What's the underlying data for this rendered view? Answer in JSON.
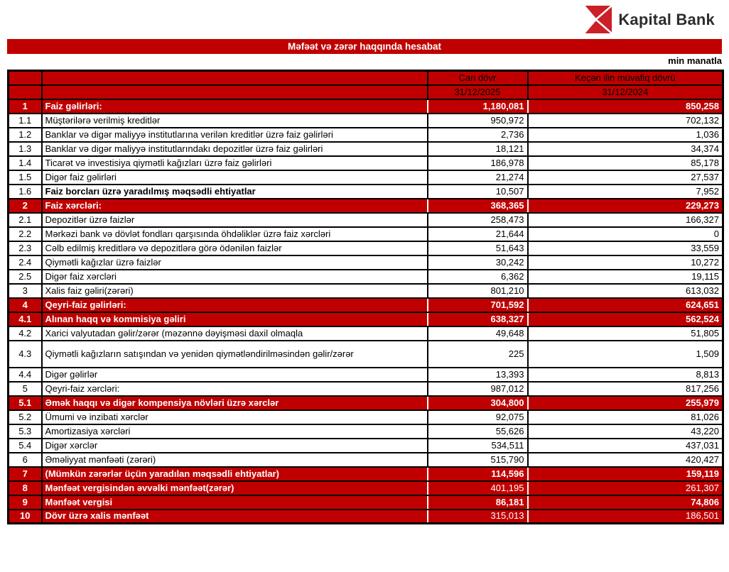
{
  "brand": {
    "name": "Kapital Bank",
    "logo_color": "#cb2026"
  },
  "report": {
    "title": "Məfəət və zərər haqqında hesabat",
    "unit_note": "min manatla",
    "accent_color": "#c00000"
  },
  "table": {
    "columns": {
      "current_label": "Cari dövr",
      "current_date": "31/12/2025",
      "previous_label": "Keçən ilin müvafiq dövrü",
      "previous_date": "31/12/2024"
    },
    "rows": [
      {
        "no": "1",
        "label": "Faiz gəlirləri:",
        "current": "1,180,081",
        "previous": "850,258",
        "style": "red"
      },
      {
        "no": "1.1",
        "label": "Müştərilərə verilmiş kreditlər",
        "current": "950,972",
        "previous": "702,132",
        "style": "white"
      },
      {
        "no": "1.2",
        "label": "Banklar və digər maliyyə institutlarına verilən kreditlər üzrə faiz gəlirləri",
        "current": "2,736",
        "previous": "1,036",
        "style": "white"
      },
      {
        "no": "1.3",
        "label": "Banklar və digər maliyyə institutlarındakı depozitlər üzrə faiz gəlirləri",
        "current": "18,121",
        "previous": "34,374",
        "style": "white"
      },
      {
        "no": "1.4",
        "label": "Ticarət və investisiya qiymətli kağızları üzrə faiz gəlirləri",
        "current": "186,978",
        "previous": "85,178",
        "style": "white"
      },
      {
        "no": "1.5",
        "label": "Digər faiz gəlirləri",
        "current": "21,274",
        "previous": "27,537",
        "style": "white"
      },
      {
        "no": "1.6",
        "label": "Faiz borcları üzrə yaradılmış məqsədli ehtiyatlar",
        "current": "10,507",
        "previous": "7,952",
        "style": "white-bold"
      },
      {
        "no": "2",
        "label": "Faiz xərcləri:",
        "current": "368,365",
        "previous": "229,273",
        "style": "red"
      },
      {
        "no": "2.1",
        "label": "Depozitlər üzrə faizlər",
        "current": "258,473",
        "previous": "166,327",
        "style": "white"
      },
      {
        "no": "2.2",
        "label": "Mərkəzi bank və dövlət fondları qarşısında öhdəliklər üzrə faiz xərcləri",
        "current": "21,644",
        "previous": "0",
        "style": "white"
      },
      {
        "no": "2.3",
        "label": "Cəlb edilmiş kreditlərə və depozitlərə görə ödənilən faizlər",
        "current": "51,643",
        "previous": "33,559",
        "style": "white"
      },
      {
        "no": "2.4",
        "label": "Qiymətli kağızlar üzrə faizlər",
        "current": "30,242",
        "previous": "10,272",
        "style": "white"
      },
      {
        "no": "2.5",
        "label": "Digər faiz xərcləri",
        "current": "6,362",
        "previous": "19,115",
        "style": "white"
      },
      {
        "no": "3",
        "label": "Xalis faiz gəliri(zərəri)",
        "current": "801,210",
        "previous": "613,032",
        "style": "white"
      },
      {
        "no": "4",
        "label": "Qeyri-faiz gəlirləri:",
        "current": "701,592",
        "previous": "624,651",
        "style": "red"
      },
      {
        "no": "4.1",
        "label": "Alınan haqq və kommisiya gəliri",
        "current": "638,327",
        "previous": "562,524",
        "style": "red"
      },
      {
        "no": "4.2",
        "label": "Xarici valyutadan gəlir/zərər (məzənnə dəyişməsi daxil olmaqla",
        "current": "49,648",
        "previous": "51,805",
        "style": "white"
      },
      {
        "no": "4.3",
        "label": "Qiymətli kağızların satışından və yenidən qiymətləndirilməsindən gəlir/zərər",
        "current": "225",
        "previous": "1,509",
        "style": "white",
        "tall": true
      },
      {
        "no": "4.4",
        "label": "Digər gəlirlər",
        "current": "13,393",
        "previous": "8,813",
        "style": "white"
      },
      {
        "no": "5",
        "label": "Qeyri-faiz xərcləri:",
        "current": "987,012",
        "previous": "817,256",
        "style": "white"
      },
      {
        "no": "5.1",
        "label": "Əmək haqqı və digər kompensiya növləri üzrə xərclər",
        "current": "304,800",
        "previous": "255,979",
        "style": "red"
      },
      {
        "no": "5.2",
        "label": "Ümumi və inzibati xərclər",
        "current": "92,075",
        "previous": "81,026",
        "style": "white"
      },
      {
        "no": "5.3",
        "label": "Amortizasiya xərcləri",
        "current": "55,626",
        "previous": "43,220",
        "style": "white"
      },
      {
        "no": "5.4",
        "label": "Digər xərclər",
        "current": "534,511",
        "previous": "437,031",
        "style": "white"
      },
      {
        "no": "6",
        "label": "Əməliyyat mənfəəti (zərəri)",
        "current": "515,790",
        "previous": "420,427",
        "style": "white"
      },
      {
        "no": "7",
        "label": "(Mümkün zərərlər üçün yaradılan məqsədli ehtiyatlar)",
        "current": "114,596",
        "previous": "159,119",
        "style": "red"
      },
      {
        "no": "8",
        "label": "Mənfəət vergisindən əvvəlki mənfəət(zərər)",
        "current": "401,195",
        "previous": "261,307",
        "style": "red-light"
      },
      {
        "no": "9",
        "label": "Mənfəət vergisi",
        "current": "86,181",
        "previous": "74,806",
        "style": "red"
      },
      {
        "no": "10",
        "label": "Dövr üzrə xalis mənfəət",
        "current": "315,013",
        "previous": "186,501",
        "style": "red-light"
      }
    ]
  }
}
